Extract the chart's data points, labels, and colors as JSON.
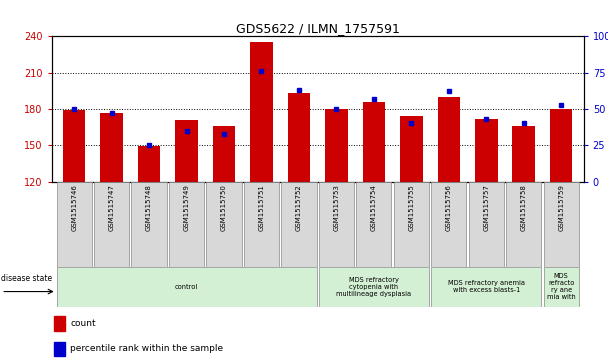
{
  "title": "GDS5622 / ILMN_1757591",
  "samples": [
    "GSM1515746",
    "GSM1515747",
    "GSM1515748",
    "GSM1515749",
    "GSM1515750",
    "GSM1515751",
    "GSM1515752",
    "GSM1515753",
    "GSM1515754",
    "GSM1515755",
    "GSM1515756",
    "GSM1515757",
    "GSM1515758",
    "GSM1515759"
  ],
  "counts": [
    179,
    177,
    149,
    171,
    166,
    235,
    193,
    180,
    186,
    174,
    190,
    172,
    166,
    180
  ],
  "percentile_ranks": [
    50,
    47,
    25,
    35,
    33,
    76,
    63,
    50,
    57,
    40,
    62,
    43,
    40,
    53
  ],
  "ylim_left": [
    120,
    240
  ],
  "ylim_right": [
    0,
    100
  ],
  "yticks_left": [
    120,
    150,
    180,
    210,
    240
  ],
  "yticks_right": [
    0,
    25,
    50,
    75,
    100
  ],
  "bar_color": "#cc0000",
  "marker_color": "#0000cc",
  "disease_groups": [
    {
      "label": "control",
      "start": 0,
      "end": 7,
      "color": "#d4f0d4"
    },
    {
      "label": "MDS refractory\ncytopenia with\nmultilineage dysplasia",
      "start": 7,
      "end": 10,
      "color": "#d4f0d4"
    },
    {
      "label": "MDS refractory anemia\nwith excess blasts-1",
      "start": 10,
      "end": 13,
      "color": "#d4f0d4"
    },
    {
      "label": "MDS\nrefracto\nry ane\nmia with",
      "start": 13,
      "end": 14,
      "color": "#d4f0d4"
    }
  ],
  "legend_items": [
    {
      "label": "count",
      "color": "#cc0000"
    },
    {
      "label": "percentile rank within the sample",
      "color": "#0000cc"
    }
  ]
}
